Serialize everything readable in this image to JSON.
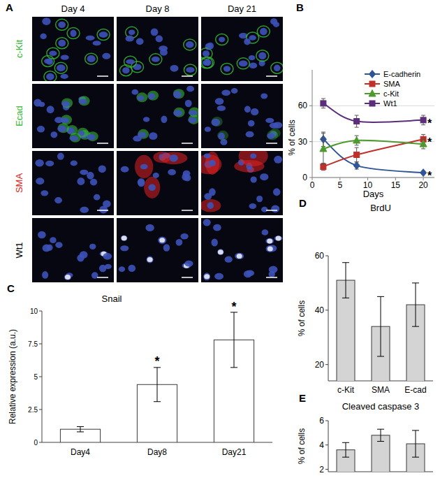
{
  "chart_data": [
    {
      "type": "image_grid",
      "panel": "A",
      "columns": [
        "Day 4",
        "Day 8",
        "Day 21"
      ],
      "rows": [
        {
          "name": "c-Kit",
          "color": "#35b535"
        },
        {
          "name": "Ecad",
          "color": "#35b535"
        },
        {
          "name": "SMA",
          "color": "#e02020"
        },
        {
          "name": "Wt1",
          "color": "#000000"
        }
      ]
    },
    {
      "type": "line",
      "panel": "B",
      "x_label": "Days",
      "y_label": "% of cells",
      "x": [
        2,
        8,
        20
      ],
      "xlim": [
        0,
        22
      ],
      "xticks": [
        0,
        5,
        10,
        15,
        20
      ],
      "ylim": [
        0,
        90
      ],
      "yticks": [
        0,
        30,
        60
      ],
      "grid": true,
      "legend": "upper right",
      "series": [
        {
          "name": "E-cadherin",
          "color": "#2f5597",
          "marker": "diamond",
          "values": [
            32,
            10,
            4
          ],
          "errors": [
            6,
            3,
            1
          ]
        },
        {
          "name": "SMA",
          "color": "#c0302b",
          "marker": "square",
          "values": [
            9,
            19,
            32
          ],
          "errors": [
            3,
            6,
            4
          ]
        },
        {
          "name": "c-Kit",
          "color": "#4e9a2e",
          "marker": "triangle",
          "values": [
            24,
            31,
            28
          ],
          "errors": [
            13,
            4,
            4
          ]
        },
        {
          "name": "Wt1",
          "color": "#5b2d7a",
          "marker": "square",
          "values": [
            62,
            47,
            48
          ],
          "errors": [
            4,
            5,
            4
          ]
        }
      ],
      "annotations": [
        {
          "text": "*",
          "x": 21,
          "y": 47
        },
        {
          "text": "*",
          "x": 21,
          "y": 31
        },
        {
          "text": "*",
          "x": 21,
          "y": 3
        }
      ]
    },
    {
      "type": "bar",
      "panel": "C",
      "title": "Snail",
      "y_label": "Relative expression (a.u.)",
      "categories": [
        "Day4",
        "Day8",
        "Day21"
      ],
      "values": [
        1,
        4.4,
        7.8
      ],
      "errors": [
        0.2,
        1.3,
        2.1
      ],
      "ylim": [
        0,
        10
      ],
      "yticks": [
        0,
        2.5,
        5,
        7.5,
        10
      ],
      "color": "#ffffff",
      "annotations": [
        {
          "text": "*",
          "x": "Day8",
          "y": 6.3
        },
        {
          "text": "*",
          "x": "Day21",
          "y": 10.4
        }
      ]
    },
    {
      "type": "bar",
      "panel": "D",
      "title": "BrdU",
      "y_label": "% of cells",
      "categories": [
        "c-Kit",
        "SMA",
        "E-cad"
      ],
      "values": [
        51,
        34,
        42
      ],
      "errors": [
        6.5,
        11,
        8
      ],
      "ylim": [
        14,
        60
      ],
      "yticks": [
        20,
        40,
        60
      ],
      "color": "#d4d4d4"
    },
    {
      "type": "bar",
      "panel": "E",
      "title": "Cleaved caspase 3",
      "y_label": "% of cells",
      "categories": [
        null,
        null,
        null
      ],
      "values": [
        3.6,
        4.8,
        4.1
      ],
      "errors": [
        0.6,
        0.5,
        1.1
      ],
      "ylim": [
        1.8,
        6
      ],
      "yticks": [
        2,
        4,
        6
      ],
      "color": "#d4d4d4"
    }
  ]
}
